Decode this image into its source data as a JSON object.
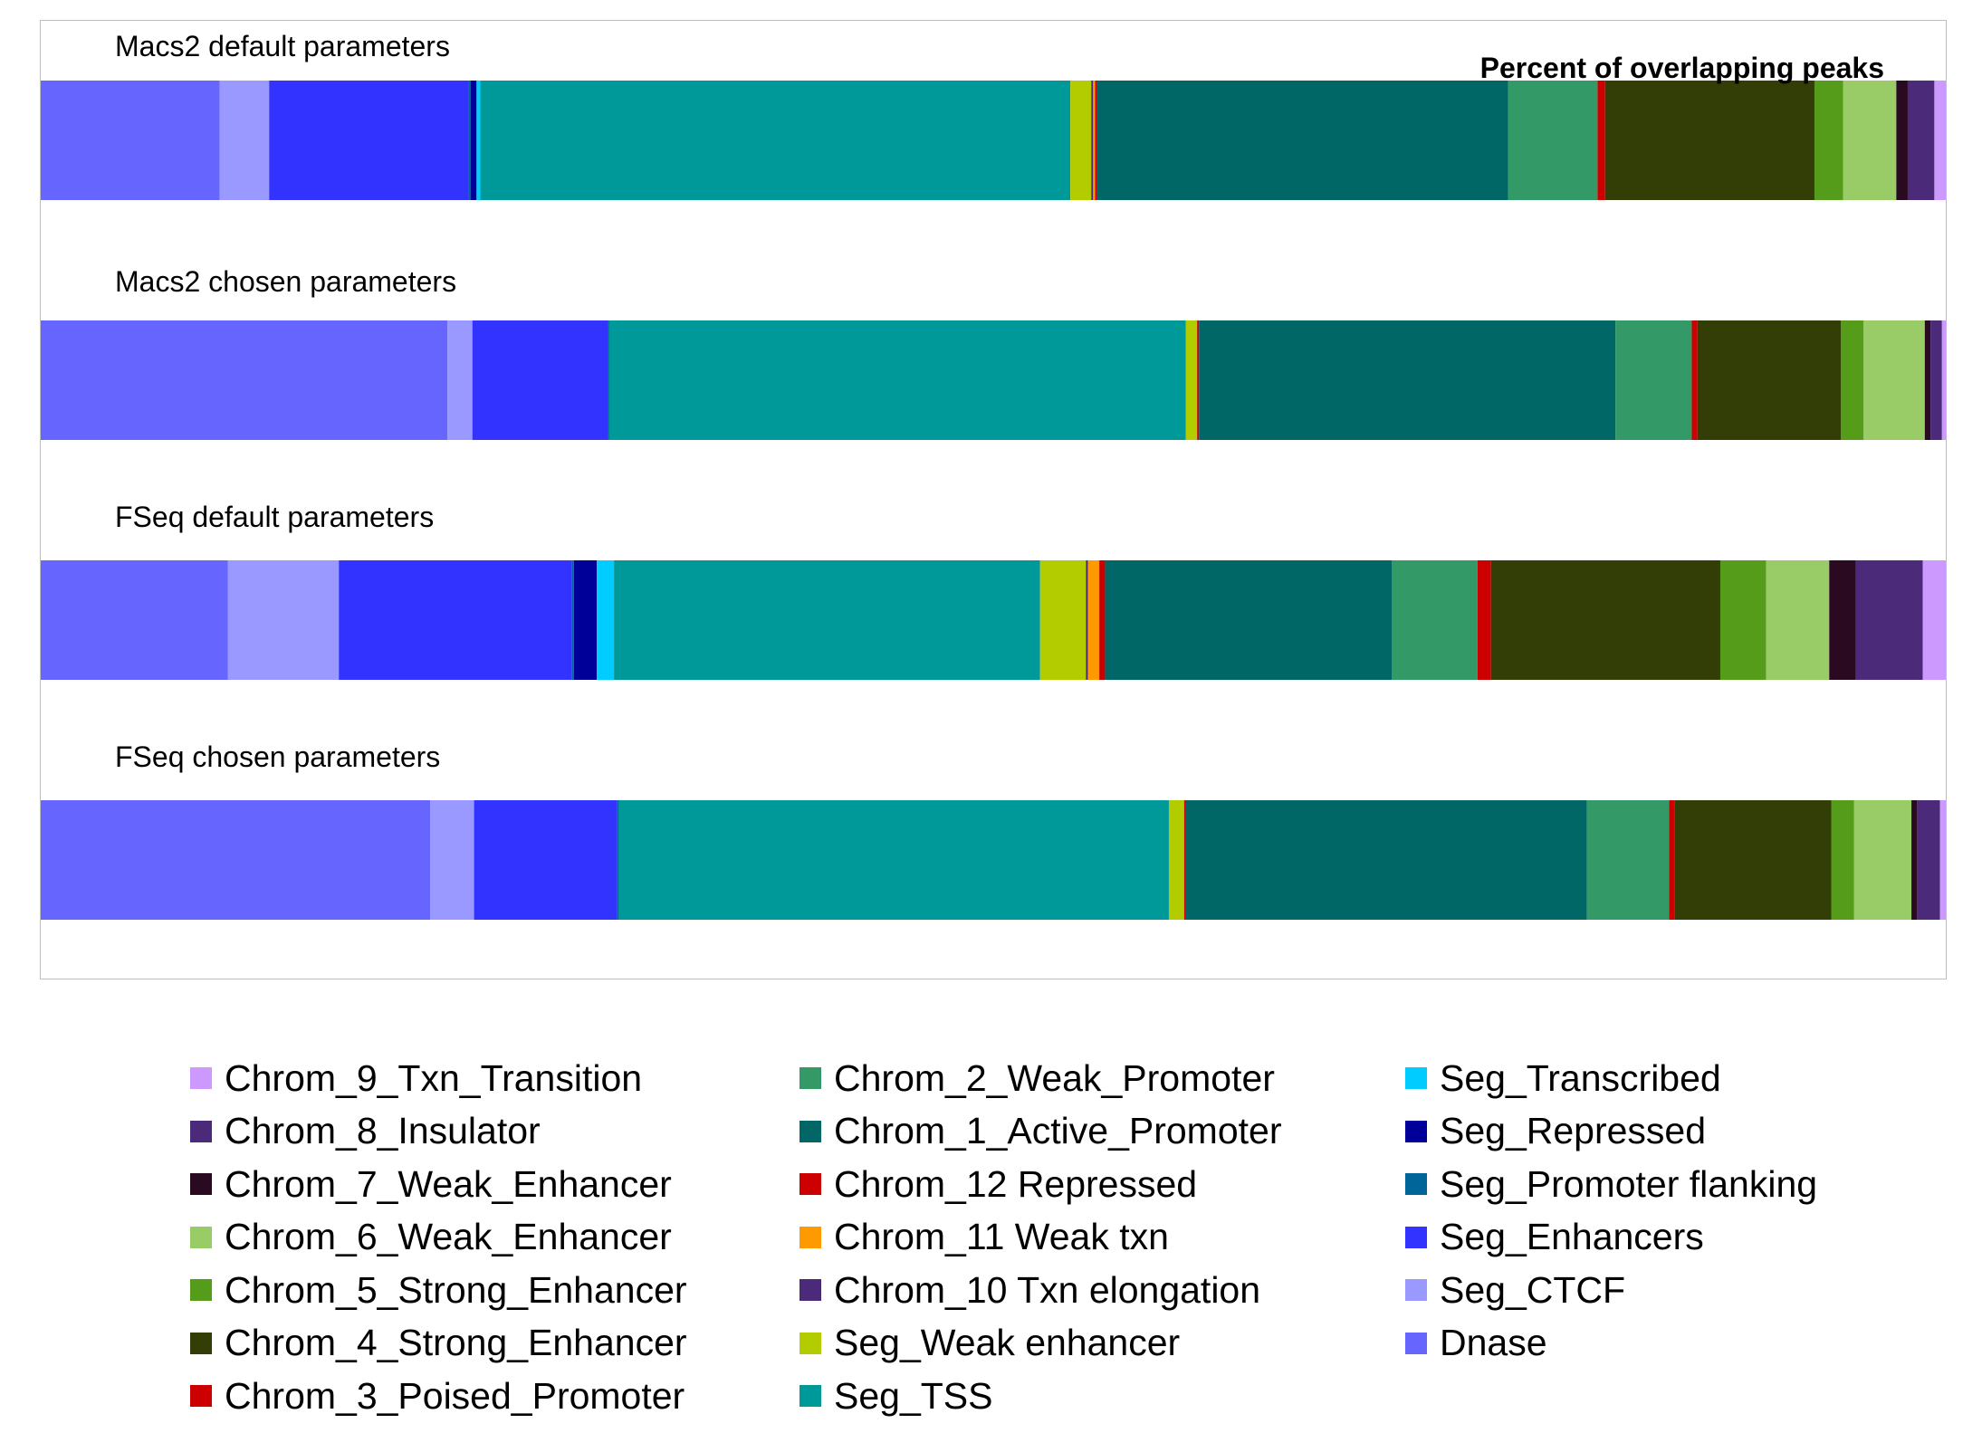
{
  "chart_data": {
    "type": "bar",
    "orientation": "horizontal",
    "stacked": true,
    "normalized": true,
    "title": "Percent of overlapping peaks",
    "xlim": [
      0,
      100
    ],
    "grid": false,
    "legend_position": "bottom",
    "series_order": [
      "Dnase",
      "Seg_CTCF",
      "Seg_Enhancers",
      "Seg_Promoter flanking",
      "Seg_Repressed",
      "Seg_Transcribed",
      "Seg_TSS",
      "Seg_Weak enhancer",
      "Chrom_10 Txn elongation",
      "Chrom_11 Weak txn",
      "Chrom_12 Repressed",
      "Chrom_1_Active_Promoter",
      "Chrom_2_Weak_Promoter",
      "Chrom_3_Poised_Promoter",
      "Chrom_4_Strong_Enhancer",
      "Chrom_5_Strong_Enhancer",
      "Chrom_6_Weak_Enhancer",
      "Chrom_7_Weak_Enhancer",
      "Chrom_8_Insulator",
      "Chrom_9_Txn_Transition"
    ],
    "colors": {
      "Dnase": "#6666ff",
      "Seg_CTCF": "#9999ff",
      "Seg_Enhancers": "#3333ff",
      "Seg_Promoter flanking": "#006699",
      "Seg_Repressed": "#000099",
      "Seg_Transcribed": "#00ccff",
      "Seg_TSS": "#009999",
      "Seg_Weak enhancer": "#b2cc00",
      "Chrom_10 Txn elongation": "#4c2a7a",
      "Chrom_11 Weak txn": "#ff9900",
      "Chrom_12 Repressed": "#cc0000",
      "Chrom_1_Active_Promoter": "#006666",
      "Chrom_2_Weak_Promoter": "#339966",
      "Chrom_3_Poised_Promoter": "#cc0000",
      "Chrom_4_Strong_Enhancer": "#333d06",
      "Chrom_5_Strong_Enhancer": "#559c1b",
      "Chrom_6_Weak_Enhancer": "#99cc66",
      "Chrom_7_Weak_Enhancer": "#2a0a20",
      "Chrom_8_Insulator": "#4c2a7a",
      "Chrom_9_Txn_Transition": "#cc99ff"
    },
    "series": [
      {
        "name": "Dnase",
        "values": [
          9.4,
          21.3,
          9.8,
          20.4
        ]
      },
      {
        "name": "Seg_CTCF",
        "values": [
          2.6,
          1.3,
          5.8,
          2.3
        ]
      },
      {
        "name": "Seg_Enhancers",
        "values": [
          10.5,
          7.1,
          12.2,
          7.5
        ]
      },
      {
        "name": "Seg_Promoter flanking",
        "values": [
          0.1,
          0.05,
          0.1,
          0.1
        ]
      },
      {
        "name": "Seg_Repressed",
        "values": [
          0.3,
          0.0,
          1.2,
          0.0
        ]
      },
      {
        "name": "Seg_Transcribed",
        "values": [
          0.2,
          0.0,
          0.9,
          0.0
        ]
      },
      {
        "name": "Seg_TSS",
        "values": [
          31.0,
          30.2,
          22.3,
          28.8
        ]
      },
      {
        "name": "Seg_Weak enhancer",
        "values": [
          1.1,
          0.6,
          2.4,
          0.8
        ]
      },
      {
        "name": "Chrom_10 Txn elongation",
        "values": [
          0.1,
          0.0,
          0.1,
          0.0
        ]
      },
      {
        "name": "Chrom_11 Weak txn",
        "values": [
          0.1,
          0.0,
          0.6,
          0.0
        ]
      },
      {
        "name": "Chrom_12 Repressed",
        "values": [
          0.1,
          0.1,
          0.3,
          0.1
        ]
      },
      {
        "name": "Chrom_1_Active_Promoter",
        "values": [
          21.6,
          21.8,
          15.0,
          21.0
        ]
      },
      {
        "name": "Chrom_2_Weak_Promoter",
        "values": [
          4.7,
          4.0,
          4.5,
          4.3
        ]
      },
      {
        "name": "Chrom_3_Poised_Promoter",
        "values": [
          0.4,
          0.3,
          0.7,
          0.3
        ]
      },
      {
        "name": "Chrom_4_Strong_Enhancer",
        "values": [
          11.0,
          7.5,
          12.0,
          8.2
        ]
      },
      {
        "name": "Chrom_5_Strong_Enhancer",
        "values": [
          1.5,
          1.2,
          2.4,
          1.2
        ]
      },
      {
        "name": "Chrom_6_Weak_Enhancer",
        "values": [
          2.8,
          3.2,
          3.3,
          3.0
        ]
      },
      {
        "name": "Chrom_7_Weak_Enhancer",
        "values": [
          0.6,
          0.3,
          1.4,
          0.3
        ]
      },
      {
        "name": "Chrom_8_Insulator",
        "values": [
          1.4,
          0.6,
          3.5,
          1.2
        ]
      },
      {
        "name": "Chrom_9_Txn_Transition",
        "values": [
          0.6,
          0.2,
          1.2,
          0.3
        ]
      }
    ],
    "categories": [
      "Macs2 default parameters",
      "Macs2 chosen parameters",
      "FSeq default parameters",
      "FSeq chosen parameters"
    ]
  },
  "legend": {
    "columns": [
      [
        "Chrom_9_Txn_Transition",
        "Chrom_8_Insulator",
        "Chrom_7_Weak_Enhancer",
        "Chrom_6_Weak_Enhancer",
        "Chrom_5_Strong_Enhancer",
        "Chrom_4_Strong_Enhancer",
        "Chrom_3_Poised_Promoter"
      ],
      [
        "Chrom_2_Weak_Promoter",
        "Chrom_1_Active_Promoter",
        "Chrom_12 Repressed",
        "Chrom_11 Weak txn",
        "Chrom_10 Txn elongation",
        "Seg_Weak enhancer",
        "Seg_TSS"
      ],
      [
        "Seg_Transcribed",
        "Seg_Repressed",
        "Seg_Promoter flanking",
        "Seg_Enhancers",
        "Seg_CTCF",
        "Dnase"
      ]
    ]
  }
}
